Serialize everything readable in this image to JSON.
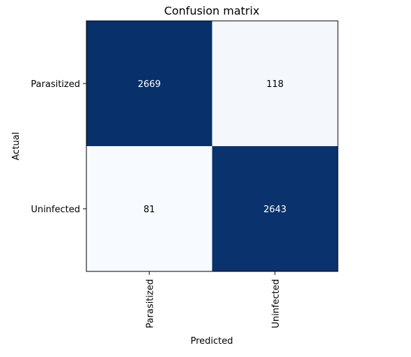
{
  "chart_data": {
    "type": "heatmap",
    "title": "Confusion matrix",
    "xlabel": "Predicted",
    "ylabel": "Actual",
    "x_categories": [
      "Parasitized",
      "Uninfected"
    ],
    "y_categories": [
      "Parasitized",
      "Uninfected"
    ],
    "values": [
      [
        2669,
        118
      ],
      [
        81,
        2643
      ]
    ],
    "colormap": "Blues",
    "colors": {
      "low": "#f7fbff",
      "high": "#08306b",
      "text_on_dark": "#ffffff",
      "text_on_light": "#000000"
    },
    "grid": false,
    "legend": "none"
  }
}
